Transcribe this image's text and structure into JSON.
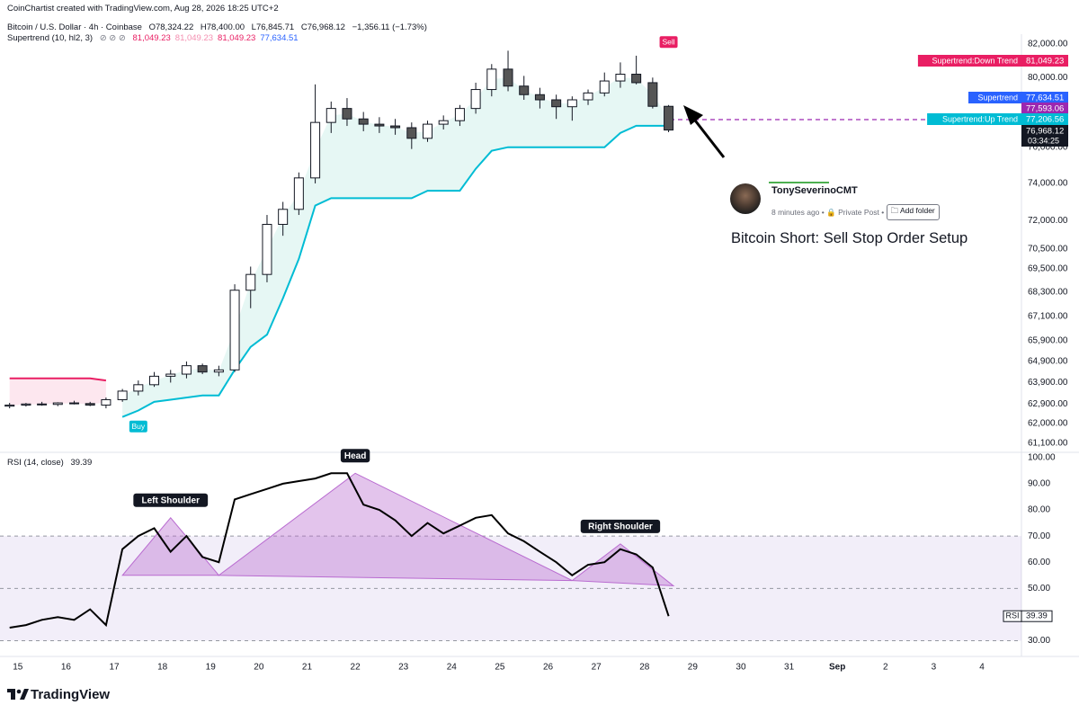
{
  "header": {
    "credit": "CoinChartist created with TradingView.com, Aug 28, 2026 18:25 UTC+2",
    "symbol": "Bitcoin / U.S. Dollar · 4h · Coinbase",
    "open": "O78,324.22",
    "high": "H78,400.00",
    "low": "L76,845.71",
    "close": "C76,968.12",
    "change": "−1,356.11 (−1.73%)",
    "indicator": "Supertrend (10, hl2, 3)",
    "indicator_values": [
      "81,049.23",
      "81,049.23",
      "81,049.23",
      "77,634.51"
    ],
    "indicator_colors": [
      "#e91e63",
      "#f48fb1",
      "#e91e63",
      "#2962ff"
    ]
  },
  "price_tags": [
    {
      "value": "81,049.23",
      "color": "#e91e63"
    },
    {
      "label": "Supertrend",
      "value": "77,634.51",
      "color": "#2962ff"
    },
    {
      "value": "77,593.06",
      "color": "#9c27b0"
    },
    {
      "value": "77,206.56",
      "color": "#00bcd4"
    },
    {
      "value": "76,968.12",
      "countdown": "03:34:25",
      "color": "#131722"
    }
  ],
  "post": {
    "author": "TonySeverinoCMT",
    "time": "8 minutes ago",
    "privacy": "Private Post",
    "button": "Add folder",
    "headline": "Bitcoin Short: Sell Stop Order Setup"
  },
  "logo": "TradingView",
  "chart_data": [
    {
      "type": "candlestick",
      "log": true,
      "xlim": [
        14.78,
        35.82
      ],
      "xticks": [
        15,
        16,
        17,
        18,
        19,
        20,
        21,
        22,
        23,
        24,
        25,
        26,
        27,
        28,
        29,
        30,
        31,
        {
          "value": 32,
          "label": "Sep"
        },
        {
          "value": 33,
          "label": "2"
        },
        {
          "value": 34,
          "label": "3"
        },
        {
          "value": 35,
          "label": "4"
        }
      ],
      "ylim": [
        60700,
        82600
      ],
      "yticks": [
        {
          "value": 82000,
          "label": "82,000.00"
        },
        {
          "value": 80000,
          "label": "80,000.00"
        },
        {
          "value": 78000,
          "label": "78,000.00"
        },
        {
          "value": 76000,
          "label": "76,000.00"
        },
        {
          "value": 74000,
          "label": "74,000.00"
        },
        {
          "value": 72000,
          "label": "72,000.00"
        },
        {
          "value": 70500,
          "label": "70,500.00"
        },
        {
          "value": 69500,
          "label": "69,500.00"
        },
        {
          "value": 68300,
          "label": "68,300.00"
        },
        {
          "value": 67100,
          "label": "67,100.00"
        },
        {
          "value": 65900,
          "label": "65,900.00"
        },
        {
          "value": 64900,
          "label": "64,900.00"
        },
        {
          "value": 63900,
          "label": "63,900.00"
        },
        {
          "value": 62900,
          "label": "62,900.00"
        },
        {
          "value": 62000,
          "label": "62,000.00"
        },
        {
          "value": 61100,
          "label": "61,100.00"
        }
      ],
      "up_color": "#ffffff",
      "down_color": "#555555",
      "wick_color": "#131722",
      "x": [
        14.83,
        15.17,
        15.5,
        15.83,
        16.17,
        16.5,
        16.83,
        17.17,
        17.5,
        17.83,
        18.17,
        18.5,
        18.83,
        19.17,
        19.5,
        19.83,
        20.17,
        20.5,
        20.83,
        21.17,
        21.5,
        21.83,
        22.17,
        22.5,
        22.83,
        23.17,
        23.5,
        23.83,
        24.17,
        24.5,
        24.83,
        25.17,
        25.5,
        25.83,
        26.17,
        26.5,
        26.83,
        27.17,
        27.5,
        27.83,
        28.17,
        28.5
      ],
      "open": [
        62800,
        62850,
        62900,
        62880,
        62950,
        62920,
        62850,
        63100,
        63500,
        63800,
        64200,
        64300,
        64700,
        64400,
        64500,
        68400,
        69200,
        71800,
        72600,
        74300,
        77400,
        78200,
        77600,
        77300,
        77200,
        77100,
        76500,
        77300,
        77500,
        78200,
        79300,
        80500,
        79500,
        79000,
        78700,
        78300,
        78700,
        79100,
        79800,
        80200,
        79700,
        78324.22
      ],
      "high": [
        62950,
        62950,
        63000,
        62980,
        63050,
        63000,
        63200,
        63600,
        64000,
        64400,
        64500,
        64900,
        64800,
        64700,
        68700,
        69600,
        72300,
        73000,
        74600,
        79600,
        78600,
        78800,
        78000,
        77700,
        77600,
        77400,
        77500,
        77800,
        78400,
        79700,
        80800,
        81600,
        80100,
        79400,
        79000,
        78900,
        79300,
        80300,
        80900,
        81300,
        80000,
        78400
      ],
      "low": [
        62700,
        62780,
        62820,
        62800,
        62880,
        62800,
        62700,
        63000,
        63300,
        63700,
        63900,
        64100,
        64300,
        64200,
        64400,
        67500,
        68800,
        71200,
        72300,
        74000,
        76800,
        77200,
        76900,
        76800,
        76700,
        75900,
        76300,
        77000,
        77200,
        77900,
        78900,
        79200,
        78700,
        78200,
        77600,
        77500,
        78400,
        78900,
        79400,
        79600,
        78200,
        76845.71
      ],
      "close": [
        62850,
        62900,
        62880,
        62950,
        62920,
        62850,
        63100,
        63500,
        63800,
        64200,
        64300,
        64700,
        64400,
        64500,
        68400,
        69200,
        71800,
        72600,
        74300,
        77400,
        78200,
        77600,
        77300,
        77200,
        77100,
        76500,
        77300,
        77500,
        78200,
        79300,
        80500,
        79500,
        79000,
        78700,
        78300,
        78700,
        79100,
        79800,
        80200,
        79700,
        78324.22,
        76968.12
      ],
      "supertrend": [
        {
          "name": "Supertrend:Down Trend",
          "color": "#e91e63",
          "fill": "#fde7ef",
          "values": [
            64100,
            64100,
            64100,
            64100,
            64100,
            64100,
            64000,
            null,
            null,
            null,
            null,
            null,
            null,
            null,
            null,
            null,
            null,
            null,
            null,
            null,
            null,
            null,
            null,
            null,
            null,
            null,
            null,
            null,
            null,
            null,
            null,
            null,
            null,
            null,
            null,
            null,
            null,
            null,
            null,
            null,
            null,
            null
          ]
        },
        {
          "name": "Supertrend:Up Trend",
          "color": "#00bcd4",
          "fill": "#e6f7f4",
          "values": [
            null,
            null,
            null,
            null,
            null,
            null,
            null,
            62300,
            62600,
            63000,
            63100,
            63200,
            63300,
            63300,
            64500,
            65600,
            66200,
            68000,
            70000,
            72800,
            73200,
            73200,
            73200,
            73200,
            73200,
            73200,
            73600,
            73600,
            73600,
            74800,
            75800,
            76000,
            76000,
            76000,
            76000,
            76000,
            76000,
            76000,
            76800,
            77206.56,
            77206.56,
            77206.56
          ]
        }
      ],
      "signals": [
        {
          "label": "Buy",
          "x": 17.5,
          "y": 62300,
          "color": "#00bcd4"
        },
        {
          "label": "Sell",
          "x": 28.5,
          "y": 81500,
          "color": "#e91e63"
        }
      ]
    },
    {
      "type": "line",
      "title": "RSI (14, close)",
      "value_label": "39.39",
      "xlim": [
        14.78,
        35.82
      ],
      "ylim": [
        24,
        102
      ],
      "yticks": [
        {
          "value": 100,
          "label": "100.00"
        },
        {
          "value": 90,
          "label": "90.00"
        },
        {
          "value": 80,
          "label": "80.00"
        },
        {
          "value": 70,
          "label": "70.00"
        },
        {
          "value": 60,
          "label": "60.00"
        },
        {
          "value": 50,
          "label": "50.00"
        },
        {
          "value": 30,
          "label": "30.00"
        }
      ],
      "band": [
        30,
        70
      ],
      "levels": [
        70,
        50,
        30
      ],
      "x": [
        14.83,
        15.17,
        15.5,
        15.83,
        16.17,
        16.5,
        16.83,
        17.17,
        17.5,
        17.83,
        18.17,
        18.5,
        18.83,
        19.17,
        19.5,
        19.83,
        20.17,
        20.5,
        20.83,
        21.17,
        21.5,
        21.83,
        22.17,
        22.5,
        22.83,
        23.17,
        23.5,
        23.83,
        24.17,
        24.5,
        24.83,
        25.17,
        25.5,
        25.83,
        26.17,
        26.5,
        26.83,
        27.17,
        27.5,
        27.83,
        28.17,
        28.5
      ],
      "series": [
        {
          "name": "RSI",
          "color": "#000000",
          "values": [
            35,
            36,
            38,
            39,
            38,
            42,
            36,
            65,
            70,
            73,
            64,
            70,
            62,
            60,
            84,
            86,
            88,
            90,
            91,
            92,
            94,
            94,
            82,
            80,
            76,
            70,
            75,
            71,
            74,
            77,
            78,
            71,
            68,
            64,
            60,
            55,
            59,
            60,
            65,
            63,
            58,
            39.39
          ]
        }
      ],
      "pattern": {
        "color": "#b96bd0",
        "x": [
          17.17,
          18.17,
          19.17,
          22.0,
          26.5,
          27.5,
          28.6
        ],
        "y": [
          55,
          77,
          55,
          94,
          53,
          67,
          51
        ],
        "labels": [
          null,
          "Left Shoulder",
          null,
          "Head",
          null,
          "Right Shoulder",
          null
        ]
      }
    }
  ]
}
